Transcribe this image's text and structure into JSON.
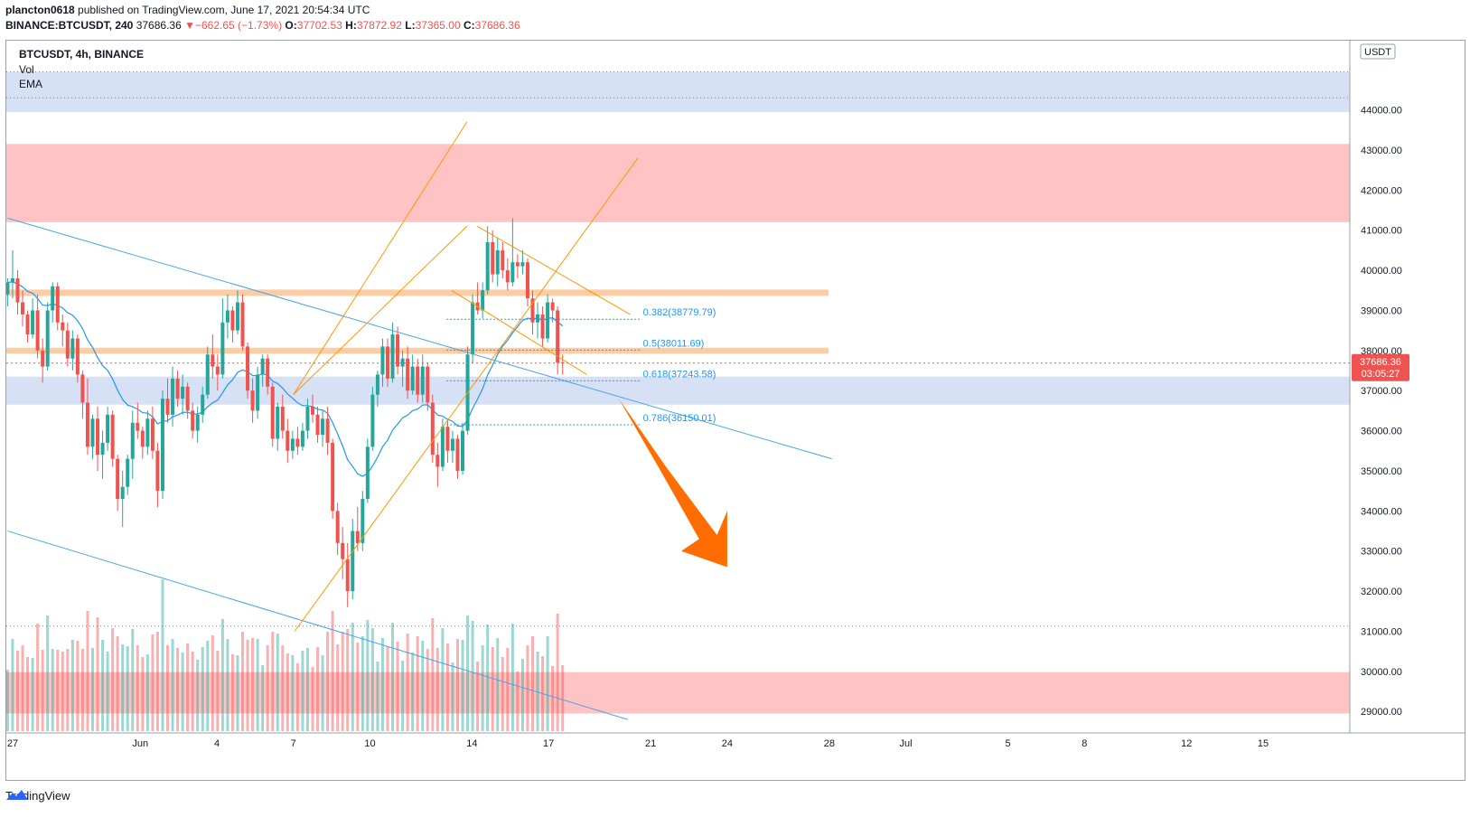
{
  "header": {
    "author": "plancton0618",
    "published_text": "published on TradingView.com, June 17, 2021 20:54:34 UTC",
    "symbol_line": "BINANCE:BTCUSDT, 240",
    "last": "37686.36",
    "change": "−662.65 (−1.73%)",
    "o_label": "O:",
    "o": "37702.53",
    "h_label": "H:",
    "h": "37872.92",
    "l_label": "L:",
    "l": "37365.00",
    "c_label": "C:",
    "c": "37686.36"
  },
  "legend": {
    "title": "BTCUSDT, 4h, BINANCE",
    "vol": "Vol",
    "ema": "EMA"
  },
  "currency": "USDT",
  "price_badge": {
    "price": "37686.36",
    "countdown": "03:05:27"
  },
  "footer": {
    "brand": "TradingView"
  },
  "colors": {
    "up": "#26a69a",
    "down": "#ef5350",
    "ema": "#2196f3",
    "zone_blue": "#cfdcf5",
    "zone_red": "#ffb8b8",
    "zone_orange": "#f9c89a",
    "channel": "#ff9800",
    "arrow": "#ff6d00",
    "trend": "#4ba3e8"
  },
  "chart_data": {
    "type": "candlestick",
    "symbol": "BTCUSDT",
    "interval": "4h",
    "exchange": "BINANCE",
    "ylim": [
      28600,
      45500
    ],
    "y_ticks": [
      29000,
      30000,
      31000,
      32000,
      33000,
      34000,
      35000,
      36000,
      37000,
      38000,
      39000,
      40000,
      41000,
      42000,
      43000,
      44000
    ],
    "y_tick_labels": [
      "29000.00",
      "30000.00",
      "31000.00",
      "32000.00",
      "33000.00",
      "34000.00",
      "35000.00",
      "36000.00",
      "37000.00",
      "38000.00",
      "39000.00",
      "40000.00",
      "41000.00",
      "42000.00",
      "43000.00",
      "44000.00"
    ],
    "x_tick_labels": [
      "27",
      "Jun",
      "4",
      "7",
      "10",
      "14",
      "17",
      "21",
      "24",
      "28",
      "Jul",
      "5",
      "8",
      "12",
      "15"
    ],
    "x_tick_days": [
      27,
      32,
      35,
      38,
      41,
      45,
      48,
      52,
      55,
      59,
      62,
      66,
      69,
      73,
      76
    ],
    "x_range_days": [
      26.75,
      79.4
    ],
    "zones": [
      {
        "kind": "blue",
        "from": 43950,
        "to": 44950
      },
      {
        "kind": "red",
        "from": 41200,
        "to": 43150
      },
      {
        "kind": "orange",
        "from": 39360,
        "to": 39520
      },
      {
        "kind": "orange",
        "from": 37920,
        "to": 38070
      },
      {
        "kind": "blue",
        "from": 36650,
        "to": 37350
      },
      {
        "kind": "red",
        "from": 28950,
        "to": 29980
      }
    ],
    "fib_levels": [
      {
        "label": "0.382(38779.79)",
        "value": 38779.79
      },
      {
        "label": "0.5(38011.69)",
        "value": 38011.69
      },
      {
        "label": "0.618(37243.58)",
        "value": 37243.58
      },
      {
        "label": "0.786(36150.01)",
        "value": 36150.01
      }
    ],
    "candles": [
      [
        39400,
        39800,
        39100,
        39700
      ],
      [
        39700,
        40500,
        39300,
        39800
      ],
      [
        39800,
        40000,
        38900,
        39200
      ],
      [
        39200,
        39500,
        38600,
        38900
      ],
      [
        38900,
        39000,
        38200,
        38400
      ],
      [
        38400,
        39300,
        38300,
        39000
      ],
      [
        39000,
        39400,
        37800,
        38000
      ],
      [
        38000,
        38300,
        37200,
        37600
      ],
      [
        37600,
        39200,
        37500,
        39000
      ],
      [
        39000,
        39700,
        38700,
        39600
      ],
      [
        39600,
        39700,
        38500,
        38700
      ],
      [
        38700,
        38900,
        38100,
        38500
      ],
      [
        38500,
        38700,
        37600,
        37800
      ],
      [
        37800,
        38500,
        37500,
        38300
      ],
      [
        38300,
        38400,
        37200,
        37400
      ],
      [
        37400,
        37500,
        36300,
        36700
      ],
      [
        36700,
        37300,
        35400,
        35600
      ],
      [
        35600,
        36400,
        35300,
        36300
      ],
      [
        36300,
        36600,
        35000,
        35400
      ],
      [
        35400,
        36000,
        34800,
        35700
      ],
      [
        35700,
        36600,
        35500,
        36400
      ],
      [
        36400,
        36500,
        35100,
        35300
      ],
      [
        35300,
        35400,
        34000,
        34300
      ],
      [
        34300,
        35000,
        33600,
        34600
      ],
      [
        34600,
        35400,
        34400,
        35300
      ],
      [
        35300,
        36500,
        34800,
        36200
      ],
      [
        36200,
        36700,
        35800,
        36000
      ],
      [
        36000,
        36100,
        35300,
        35600
      ],
      [
        35600,
        36500,
        35400,
        36300
      ],
      [
        36300,
        36600,
        35300,
        35500
      ],
      [
        35500,
        35700,
        34100,
        34500
      ],
      [
        34500,
        37000,
        34300,
        36800
      ],
      [
        36800,
        37300,
        36200,
        36400
      ],
      [
        36400,
        37600,
        36100,
        37300
      ],
      [
        37300,
        37500,
        36600,
        36800
      ],
      [
        36800,
        37400,
        36400,
        37100
      ],
      [
        37100,
        37200,
        36300,
        36500
      ],
      [
        36500,
        36700,
        35800,
        36000
      ],
      [
        36000,
        36600,
        35700,
        36400
      ],
      [
        36400,
        37100,
        36200,
        36900
      ],
      [
        36900,
        38100,
        36800,
        37900
      ],
      [
        37900,
        38400,
        37300,
        37600
      ],
      [
        37600,
        37900,
        37000,
        37400
      ],
      [
        37400,
        39300,
        37300,
        38700
      ],
      [
        38700,
        39400,
        38300,
        39000
      ],
      [
        39000,
        39100,
        38200,
        38500
      ],
      [
        38500,
        39500,
        38400,
        39200
      ],
      [
        39200,
        39400,
        38000,
        38100
      ],
      [
        38100,
        38200,
        36800,
        37000
      ],
      [
        37000,
        37300,
        36200,
        36500
      ],
      [
        36500,
        37600,
        36300,
        37400
      ],
      [
        37400,
        37900,
        37100,
        37800
      ],
      [
        37800,
        37900,
        36900,
        37100
      ],
      [
        37100,
        37200,
        35600,
        35800
      ],
      [
        35800,
        36700,
        35500,
        36600
      ],
      [
        36600,
        36900,
        35800,
        36000
      ],
      [
        36000,
        36300,
        35200,
        35500
      ],
      [
        35500,
        36000,
        35300,
        35800
      ],
      [
        35800,
        36100,
        35400,
        35600
      ],
      [
        35600,
        36200,
        35500,
        36000
      ],
      [
        36000,
        36800,
        35800,
        36600
      ],
      [
        36600,
        36900,
        36200,
        36400
      ],
      [
        36400,
        36600,
        35700,
        35900
      ],
      [
        35900,
        36500,
        35600,
        36300
      ],
      [
        36300,
        36600,
        35400,
        35700
      ],
      [
        35700,
        35800,
        33800,
        34000
      ],
      [
        34000,
        34200,
        32900,
        33200
      ],
      [
        33200,
        33600,
        32300,
        32800
      ],
      [
        32800,
        33200,
        31600,
        32000
      ],
      [
        32000,
        33800,
        31800,
        33500
      ],
      [
        33500,
        34100,
        33000,
        33200
      ],
      [
        33200,
        34500,
        33000,
        34300
      ],
      [
        34300,
        35800,
        34200,
        35600
      ],
      [
        35600,
        37100,
        35500,
        36900
      ],
      [
        36900,
        37500,
        36600,
        37400
      ],
      [
        37400,
        38300,
        37100,
        38100
      ],
      [
        38100,
        38300,
        37100,
        37300
      ],
      [
        37300,
        38700,
        37200,
        38400
      ],
      [
        38400,
        38600,
        37400,
        37600
      ],
      [
        37600,
        38000,
        37100,
        37800
      ],
      [
        37800,
        38100,
        36800,
        37000
      ],
      [
        37000,
        37900,
        36900,
        37600
      ],
      [
        37600,
        37800,
        36700,
        36900
      ],
      [
        36900,
        37900,
        36700,
        37600
      ],
      [
        37600,
        37700,
        36500,
        36700
      ],
      [
        36700,
        36900,
        35200,
        35400
      ],
      [
        35400,
        35700,
        34600,
        35100
      ],
      [
        35100,
        36300,
        35000,
        36100
      ],
      [
        36100,
        36300,
        35200,
        35500
      ],
      [
        35500,
        36000,
        35200,
        35800
      ],
      [
        35800,
        35900,
        34800,
        35000
      ],
      [
        35000,
        36200,
        34900,
        36000
      ],
      [
        36000,
        38100,
        35900,
        37900
      ],
      [
        37900,
        39400,
        37700,
        39200
      ],
      [
        39200,
        39700,
        38900,
        39000
      ],
      [
        39000,
        39700,
        38800,
        39500
      ],
      [
        39500,
        41100,
        39400,
        40700
      ],
      [
        40700,
        41000,
        39700,
        39900
      ],
      [
        39900,
        40800,
        39600,
        40500
      ],
      [
        40500,
        40700,
        39800,
        40000
      ],
      [
        40000,
        40300,
        39500,
        39700
      ],
      [
        39700,
        41300,
        39600,
        40200
      ],
      [
        40200,
        40400,
        39800,
        40100
      ],
      [
        40100,
        40500,
        39900,
        40200
      ],
      [
        40200,
        40300,
        39100,
        39300
      ],
      [
        39300,
        39500,
        38400,
        38700
      ],
      [
        38700,
        39200,
        38300,
        38900
      ],
      [
        38900,
        39100,
        38100,
        38300
      ],
      [
        38300,
        39400,
        38200,
        39200
      ],
      [
        39200,
        39300,
        38700,
        39000
      ],
      [
        39000,
        39100,
        37400,
        37700
      ],
      [
        37700,
        37900,
        37400,
        37686
      ]
    ]
  }
}
